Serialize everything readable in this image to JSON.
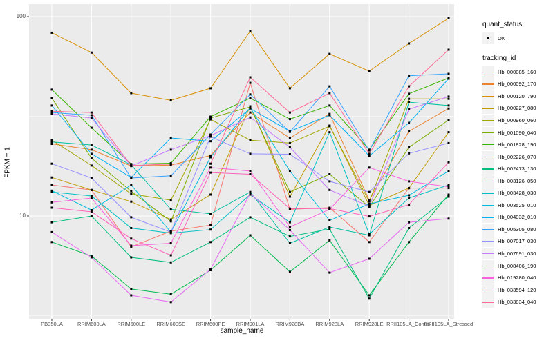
{
  "figure": {
    "y_axis_title": "FPKM + 1",
    "x_axis_title": "sample_name",
    "y_ticks": [
      {
        "label": "100",
        "value": 100
      },
      {
        "label": "10",
        "value": 10
      }
    ],
    "legend": {
      "quant_title": "quant_status",
      "quant_items": [
        {
          "label": "OK"
        }
      ],
      "tracking_title": "tracking_id"
    },
    "colors": {
      "panel_background": "#EBEBEB",
      "gridline": "#FFFFFF",
      "tick_mark": "#333333",
      "tick_label": "#4D4D4D",
      "point": "#000000",
      "legend_key_background": "#F2F2F2"
    }
  },
  "chart_data": {
    "type": "line",
    "title": "",
    "xlabel": "sample_name",
    "ylabel": "FPKM + 1",
    "y_scale": "log10",
    "ylim": [
      3.0,
      115
    ],
    "grid": true,
    "legend_position": "right",
    "marker": "small-black-square",
    "x_categories": [
      "PB350LA",
      "RRIM600LA",
      "RRIM600LE",
      "RRIM600SE",
      "RRIM600PE",
      "RRIM901LA",
      "RRIM928BA",
      "RRIM928LA",
      "RRIM928LE",
      "RRII105LA_Control",
      "RRII105LA_Stressed"
    ],
    "series": [
      {
        "name": "Hb_000085_160",
        "color": "#F8766D",
        "quant_status": "OK",
        "values": [
          14.3,
          13.5,
          7.0,
          8.4,
          9.0,
          46.5,
          10.8,
          11.0,
          7.4,
          13.8,
          13.8
        ]
      },
      {
        "name": "Hb_000092_170",
        "color": "#EA8331",
        "quant_status": "OK",
        "values": [
          23.0,
          21.5,
          17.8,
          18.0,
          20.1,
          33.0,
          24.6,
          32.5,
          12.0,
          26.6,
          34.6
        ]
      },
      {
        "name": "Hb_000120_790",
        "color": "#D89000",
        "quant_status": "OK",
        "values": [
          83.0,
          66.0,
          41.3,
          38.0,
          43.7,
          84.5,
          43.7,
          65.0,
          53.3,
          73.3,
          98.0
        ]
      },
      {
        "name": "Hb_000227_080",
        "color": "#C09B00",
        "quant_status": "OK",
        "values": [
          15.6,
          13.5,
          11.8,
          9.6,
          12.8,
          35.5,
          12.5,
          28.4,
          11.3,
          13.8,
          26.3
        ]
      },
      {
        "name": "Hb_000960_060",
        "color": "#A3A500",
        "quant_status": "OK",
        "values": [
          24.0,
          17.9,
          12.9,
          12.0,
          30.5,
          24.0,
          23.2,
          28.2,
          11.8,
          38.7,
          38.7
        ]
      },
      {
        "name": "Hb_001090_040",
        "color": "#7CAE00",
        "quant_status": "OK",
        "values": [
          39.0,
          19.5,
          13.3,
          9.4,
          31.0,
          35.2,
          13.2,
          16.2,
          11.1,
          22.1,
          30.3
        ]
      },
      {
        "name": "Hb_001828_190",
        "color": "#39B600",
        "quant_status": "OK",
        "values": [
          43.0,
          27.7,
          18.2,
          18.4,
          31.5,
          39.0,
          30.6,
          35.8,
          21.5,
          41.0,
          49.2
        ]
      },
      {
        "name": "Hb_002226_070",
        "color": "#00BB4E",
        "quant_status": "OK",
        "values": [
          7.4,
          6.3,
          4.3,
          4.05,
          5.35,
          8.0,
          5.25,
          7.55,
          4.0,
          7.4,
          12.8
        ]
      },
      {
        "name": "Hb_002473_130",
        "color": "#00BF7D",
        "quant_status": "OK",
        "values": [
          9.3,
          10.0,
          6.2,
          5.85,
          7.4,
          9.85,
          7.9,
          8.6,
          3.85,
          8.7,
          12.5
        ]
      },
      {
        "name": "Hb_003126_050",
        "color": "#00C1A3",
        "quant_status": "OK",
        "values": [
          23.5,
          22.7,
          18.0,
          10.8,
          10.25,
          13.2,
          7.3,
          8.8,
          8.0,
          37.2,
          35.8
        ]
      },
      {
        "name": "Hb_003428_030",
        "color": "#00BFC4",
        "quant_status": "OK",
        "values": [
          13.2,
          12.6,
          8.7,
          8.2,
          8.55,
          12.8,
          9.3,
          26.3,
          8.1,
          12.3,
          14.3
        ]
      },
      {
        "name": "Hb_003525_010",
        "color": "#00BAE0",
        "quant_status": "OK",
        "values": [
          13.4,
          10.7,
          14.3,
          8.3,
          19.7,
          34.9,
          16.8,
          9.5,
          11.5,
          12.7,
          16.8
        ]
      },
      {
        "name": "Hb_004032_010",
        "color": "#00B0F6",
        "quant_status": "OK",
        "values": [
          35.8,
          20.5,
          15.6,
          24.6,
          23.7,
          34.6,
          26.6,
          32.0,
          20.0,
          29.3,
          48.8
        ]
      },
      {
        "name": "Hb_005305_080",
        "color": "#35A2FF",
        "quant_status": "OK",
        "values": [
          33.0,
          32.0,
          15.5,
          15.9,
          25.6,
          40.7,
          26.4,
          44.7,
          21.3,
          50.5,
          51.6
        ]
      },
      {
        "name": "Hb_007017_030",
        "color": "#9590FF",
        "quant_status": "OK",
        "values": [
          18.3,
          15.5,
          9.85,
          8.3,
          25.0,
          20.5,
          20.4,
          14.9,
          13.2,
          20.6,
          23.2
        ]
      },
      {
        "name": "Hb_007691_030",
        "color": "#C77CFF",
        "quant_status": "OK",
        "values": [
          32.5,
          31.0,
          17.8,
          21.5,
          25.3,
          31.2,
          22.1,
          13.5,
          11.2,
          34.3,
          39.7
        ]
      },
      {
        "name": "Hb_008406_190",
        "color": "#E76BF3",
        "quant_status": "OK",
        "values": [
          8.3,
          6.2,
          4.0,
          3.7,
          5.4,
          13.0,
          8.5,
          5.2,
          6.1,
          9.3,
          9.7
        ]
      },
      {
        "name": "Hb_019280_040",
        "color": "#FA62DB",
        "quant_status": "OK",
        "values": [
          11.7,
          12.3,
          7.1,
          7.3,
          17.5,
          16.8,
          8.8,
          10.8,
          17.5,
          14.9,
          14.0
        ]
      },
      {
        "name": "Hb_033594_120",
        "color": "#FF62BC",
        "quant_status": "OK",
        "values": [
          11.0,
          10.5,
          7.7,
          6.35,
          16.5,
          16.2,
          10.9,
          10.9,
          9.95,
          11.4,
          18.6
        ]
      },
      {
        "name": "Hb_033834_040",
        "color": "#FF6A98",
        "quant_status": "OK",
        "values": [
          33.5,
          33.0,
          17.9,
          18.2,
          18.3,
          49.6,
          33.0,
          41.3,
          20.5,
          44.7,
          68.2
        ]
      }
    ]
  }
}
